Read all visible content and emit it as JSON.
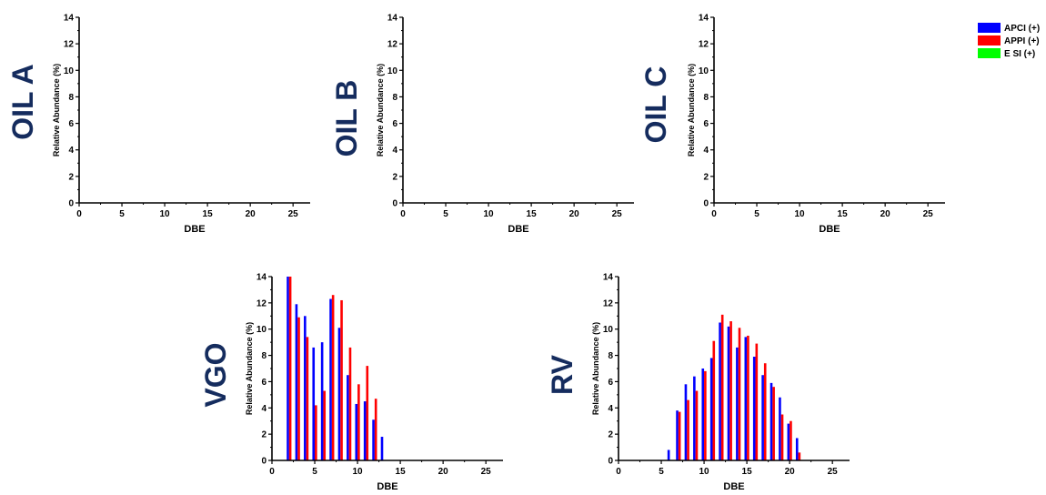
{
  "chart_data": [
    {
      "type": "bar",
      "panel_label": "OIL A",
      "xlabel": "DBE",
      "ylabel": "Relative Abundance (%)",
      "xlim": [
        0,
        27
      ],
      "ylim": [
        0,
        14
      ],
      "xticks": [
        0,
        5,
        10,
        15,
        20,
        25
      ],
      "yticks": [
        0,
        2,
        4,
        6,
        8,
        10,
        12,
        14
      ],
      "series": []
    },
    {
      "type": "bar",
      "panel_label": "OIL B",
      "xlabel": "DBE",
      "ylabel": "Relative Abundance (%)",
      "xlim": [
        0,
        27
      ],
      "ylim": [
        0,
        14
      ],
      "xticks": [
        0,
        5,
        10,
        15,
        20,
        25
      ],
      "yticks": [
        0,
        2,
        4,
        6,
        8,
        10,
        12,
        14
      ],
      "series": []
    },
    {
      "type": "bar",
      "panel_label": "OIL C",
      "xlabel": "DBE",
      "ylabel": "Relative Abundance (%)",
      "xlim": [
        0,
        27
      ],
      "ylim": [
        0,
        14
      ],
      "xticks": [
        0,
        5,
        10,
        15,
        20,
        25
      ],
      "yticks": [
        0,
        2,
        4,
        6,
        8,
        10,
        12,
        14
      ],
      "series": []
    },
    {
      "type": "bar",
      "panel_label": "VGO",
      "xlabel": "DBE",
      "ylabel": "Relative Abundance (%)",
      "xlim": [
        0,
        27
      ],
      "ylim": [
        0,
        14
      ],
      "xticks": [
        0,
        5,
        10,
        15,
        20,
        25
      ],
      "yticks": [
        0,
        2,
        4,
        6,
        8,
        10,
        12,
        14
      ],
      "series": [
        {
          "name": "APCI (+)",
          "x": [
            2,
            3,
            4,
            5,
            6,
            7,
            8,
            9,
            10,
            11,
            12,
            13
          ],
          "values": [
            14,
            11.9,
            11,
            8.6,
            9,
            12.3,
            10.1,
            6.5,
            4.3,
            4.5,
            3.1,
            1.8
          ]
        },
        {
          "name": "APPI (+)",
          "x": [
            2,
            3,
            4,
            5,
            6,
            7,
            8,
            9,
            10,
            11,
            12
          ],
          "values": [
            14,
            10.9,
            9.4,
            4.2,
            5.3,
            12.6,
            12.2,
            8.6,
            5.8,
            7.2,
            4.7
          ]
        }
      ]
    },
    {
      "type": "bar",
      "panel_label": "RV",
      "xlabel": "DBE",
      "ylabel": "Relative Abundance (%)",
      "xlim": [
        0,
        27
      ],
      "ylim": [
        0,
        14
      ],
      "xticks": [
        0,
        5,
        10,
        15,
        20,
        25
      ],
      "yticks": [
        0,
        2,
        4,
        6,
        8,
        10,
        12,
        14
      ],
      "series": [
        {
          "name": "APCI (+)",
          "x": [
            6,
            7,
            8,
            9,
            10,
            11,
            12,
            13,
            14,
            15,
            16,
            17,
            18,
            19,
            20,
            21
          ],
          "values": [
            0.8,
            3.8,
            5.8,
            6.4,
            7,
            7.8,
            10.5,
            10.2,
            8.6,
            9.4,
            7.9,
            6.5,
            5.9,
            4.8,
            2.8,
            1.7
          ]
        },
        {
          "name": "APPI (+)",
          "x": [
            7,
            8,
            9,
            10,
            11,
            12,
            13,
            14,
            15,
            16,
            17,
            18,
            19,
            20,
            21
          ],
          "values": [
            3.7,
            4.6,
            5.3,
            6.8,
            9.1,
            11.1,
            10.6,
            10.1,
            9.5,
            8.9,
            7.4,
            5.6,
            3.5,
            3,
            0.6
          ]
        }
      ]
    }
  ],
  "legend": {
    "placement": "top-right",
    "entries": [
      {
        "label": "APCI (+)",
        "color": "#0000ff"
      },
      {
        "label": "APPI (+)",
        "color": "#ff0000"
      },
      {
        "label": "E SI (+)",
        "color": "#00ff00"
      }
    ]
  },
  "colors": {
    "APCI (+)": "#0000ff",
    "APPI (+)": "#ff0000",
    "E SI (+)": "#00ff00",
    "panel_label": "#152c5e"
  }
}
